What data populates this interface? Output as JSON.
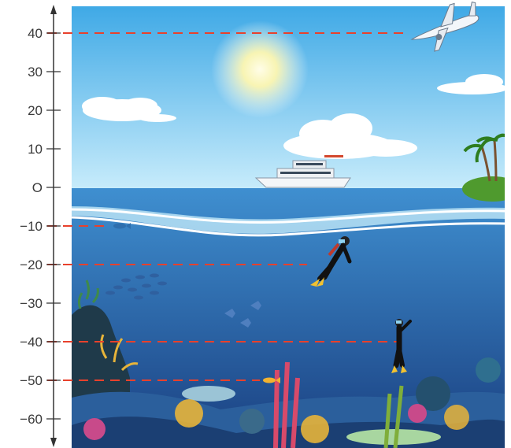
{
  "axis": {
    "ticks": [
      {
        "value": 40,
        "label": "40"
      },
      {
        "value": 30,
        "label": "30"
      },
      {
        "value": 20,
        "label": "20"
      },
      {
        "value": 10,
        "label": "10"
      },
      {
        "value": 0,
        "label": "O"
      },
      {
        "value": -10,
        "label": "−10"
      },
      {
        "value": -20,
        "label": "−20"
      },
      {
        "value": -30,
        "label": "−30"
      },
      {
        "value": -40,
        "label": "−40"
      },
      {
        "value": -50,
        "label": "−50"
      },
      {
        "value": -60,
        "label": "−60"
      }
    ],
    "range": [
      -66,
      46
    ]
  },
  "markers": [
    {
      "value": 40,
      "object": "airplane-icon"
    },
    {
      "value": -10,
      "object": "fish-icon"
    },
    {
      "value": -20,
      "object": "diver-icon"
    },
    {
      "value": -40,
      "object": "diver-icon"
    },
    {
      "value": -50,
      "object": "fish-icon"
    }
  ],
  "colors": {
    "sky_top": "#3fa9e6",
    "sky_bottom": "#c8ecfb",
    "sea_top": "#3f8fd0",
    "sea_bottom": "#1a3f80",
    "marker_line": "#e8412c",
    "axis": "#333333"
  }
}
